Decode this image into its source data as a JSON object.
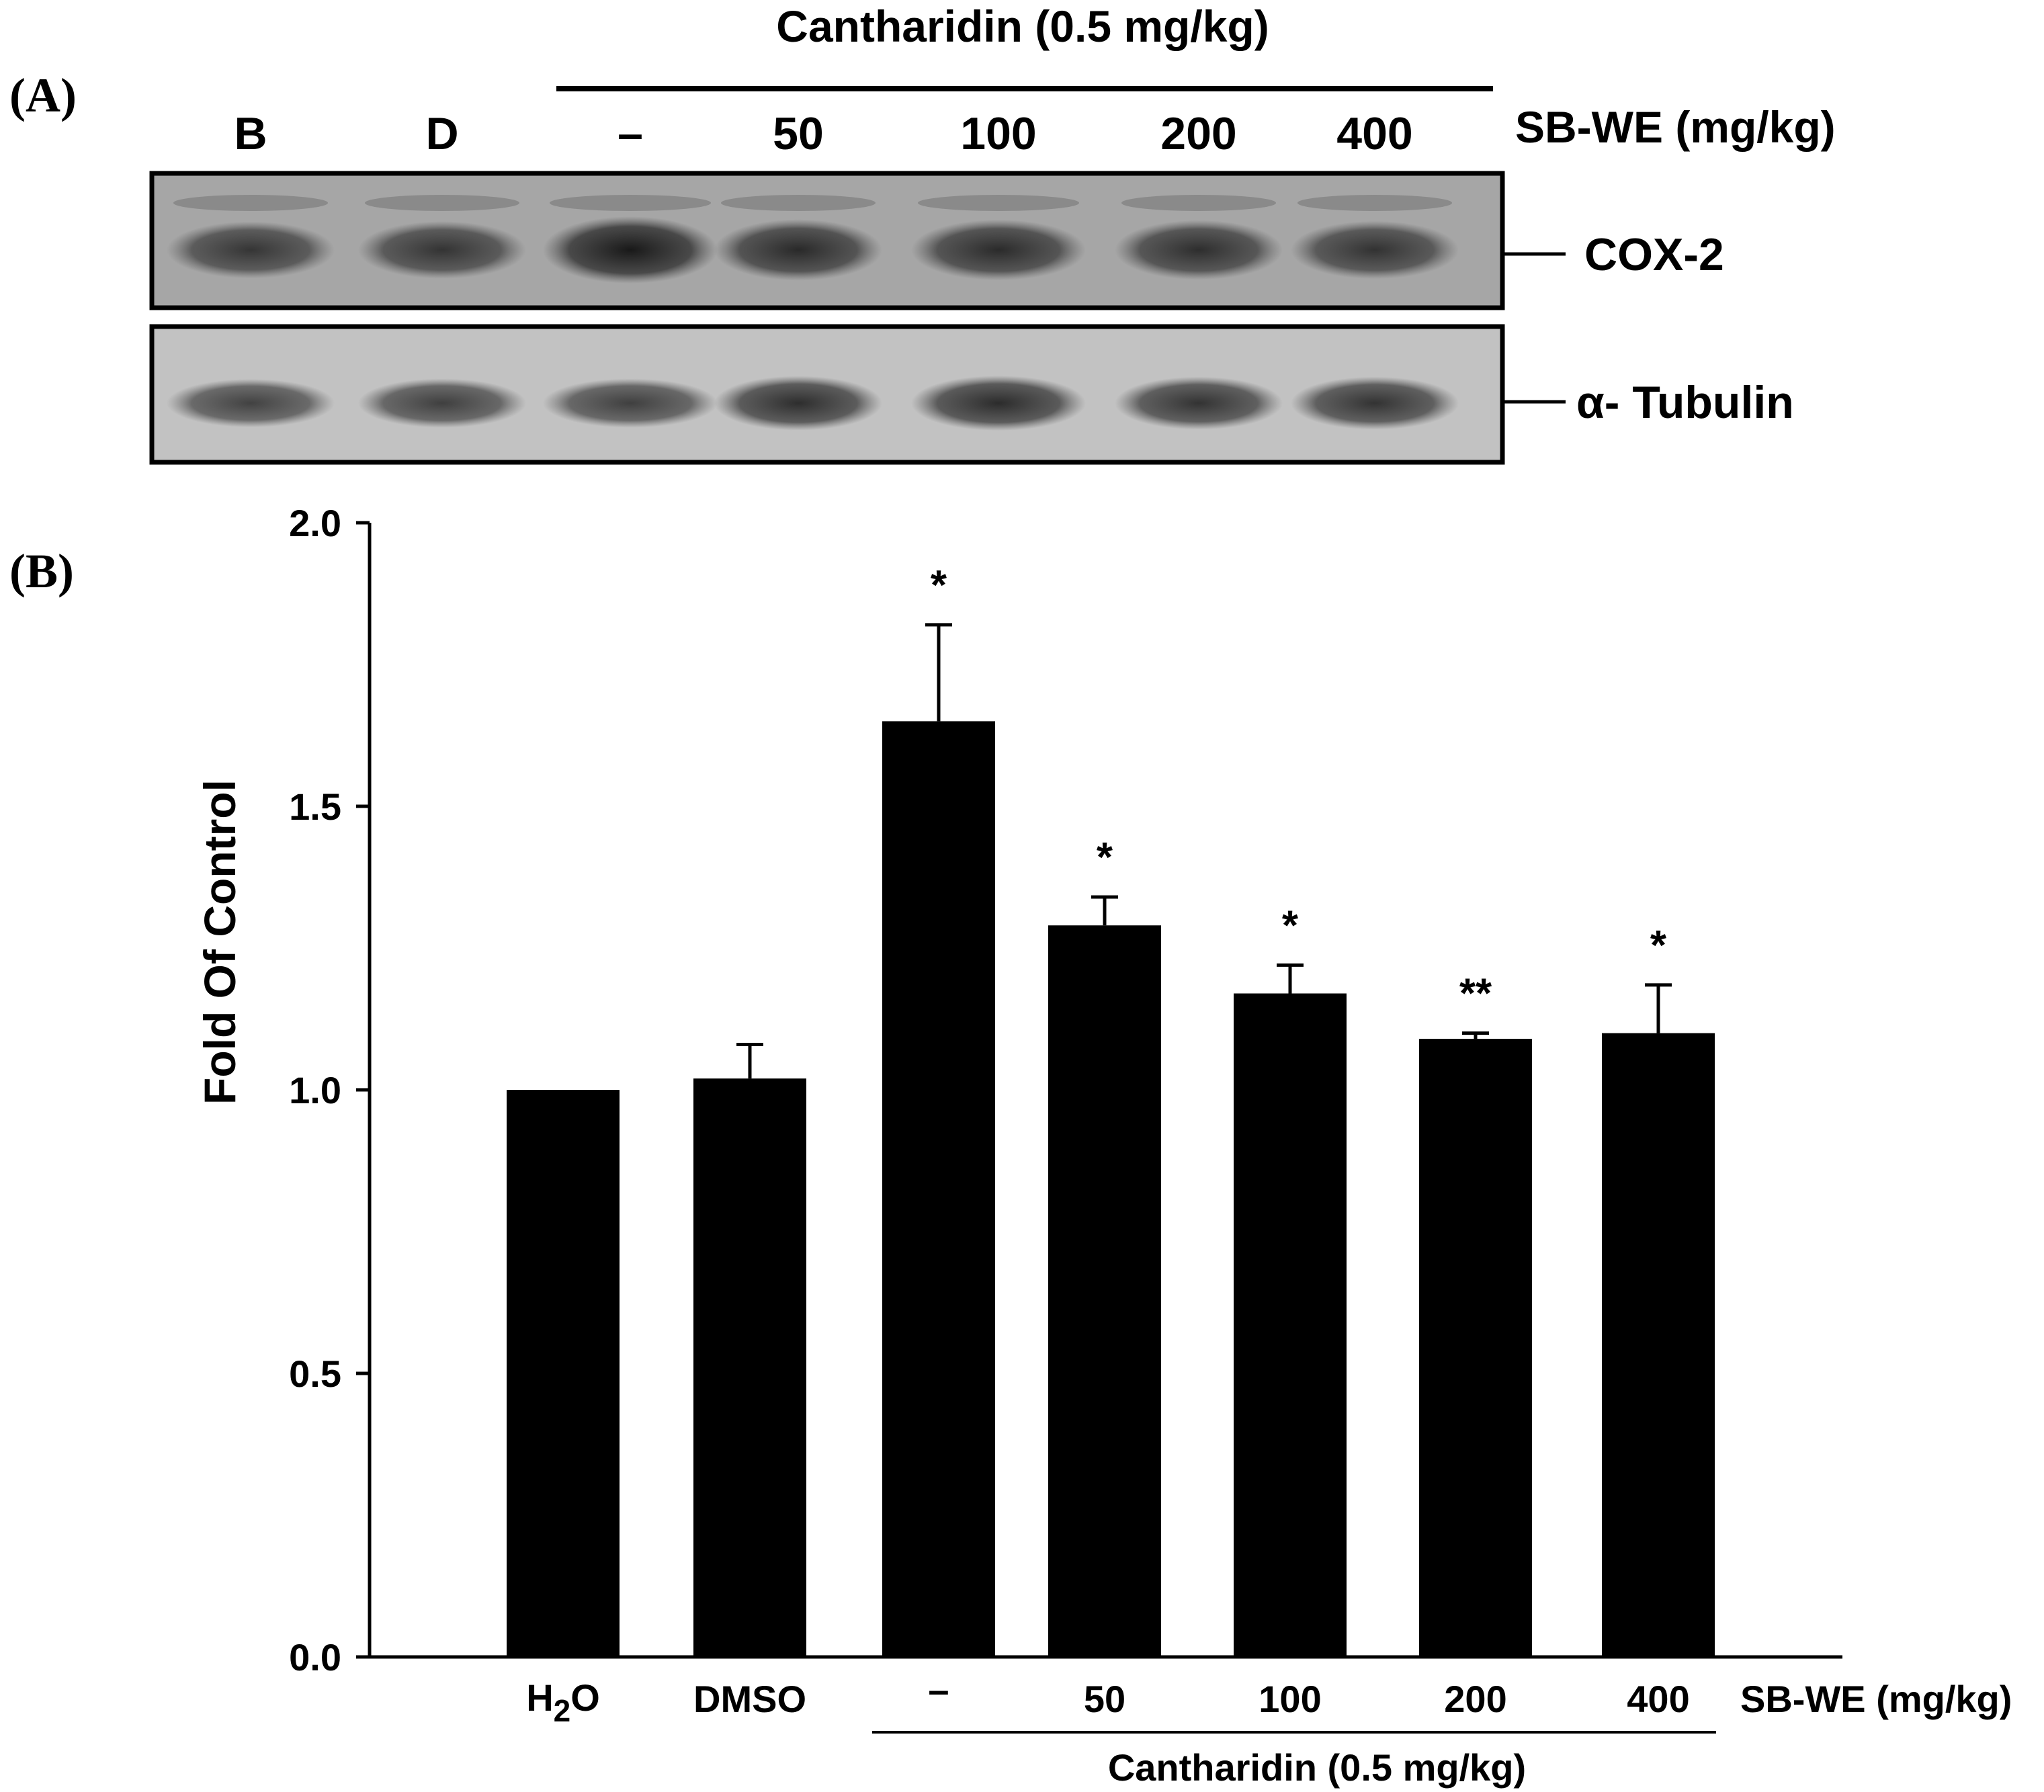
{
  "panel_a": {
    "label": "(A)",
    "treatment_header": "Cantharidin (0.5 mg/kg)",
    "dose_header": "SB-WE (mg/kg)",
    "lanes": [
      "B",
      "D",
      "–",
      "50",
      "100",
      "200",
      "400"
    ],
    "band_labels": {
      "cox2": "COX-2",
      "tubulin": "α- Tubulin"
    },
    "cox2_band_intensity": [
      0.62,
      0.64,
      1.0,
      0.78,
      0.76,
      0.72,
      0.66
    ],
    "tubulin_band_intensity": [
      0.55,
      0.58,
      0.58,
      0.78,
      0.8,
      0.72,
      0.72
    ]
  },
  "panel_b": {
    "label": "(B)"
  },
  "chart_data": {
    "type": "bar",
    "ylabel": "Fold Of Control",
    "ylim": [
      0,
      2.0
    ],
    "yticks": [
      "0.0",
      "0.5",
      "1.0",
      "1.5",
      "2.0"
    ],
    "categories": [
      {
        "main": "H",
        "sub": "2",
        "tail": "O"
      },
      {
        "main": "DMSO",
        "sub": "",
        "tail": ""
      },
      {
        "main": "–",
        "sub": "",
        "tail": ""
      },
      {
        "main": "50",
        "sub": "",
        "tail": ""
      },
      {
        "main": "100",
        "sub": "",
        "tail": ""
      },
      {
        "main": "200",
        "sub": "",
        "tail": ""
      },
      {
        "main": "400",
        "sub": "",
        "tail": ""
      }
    ],
    "values": [
      1.0,
      1.02,
      1.65,
      1.29,
      1.17,
      1.09,
      1.1
    ],
    "errors": [
      0.0,
      0.06,
      0.17,
      0.05,
      0.05,
      0.01,
      0.085
    ],
    "significance": [
      "",
      "",
      "*",
      "*",
      "*",
      "**",
      "*"
    ],
    "x_group_label": "SB-WE (mg/kg)",
    "x_bracket_label": "Cantharidin (0.5 mg/kg)",
    "bar_color": "#000000"
  }
}
